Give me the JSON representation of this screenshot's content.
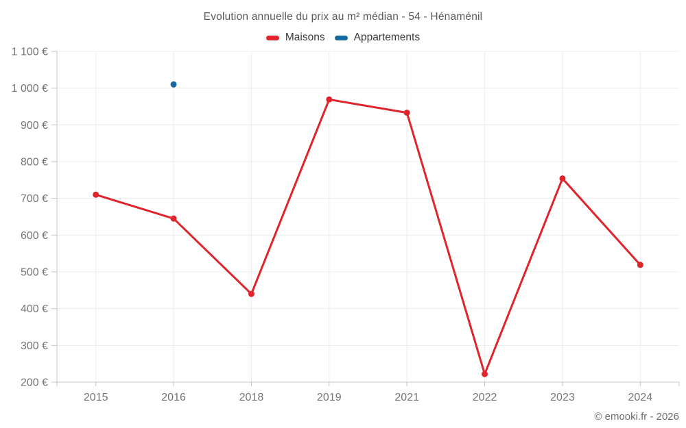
{
  "chart_data": {
    "type": "line",
    "title": "Evolution annuelle du prix au m² médian - 54 - Hénaménil",
    "categories": [
      "2015",
      "2016",
      "2018",
      "2019",
      "2021",
      "2022",
      "2023",
      "2024"
    ],
    "series": [
      {
        "name": "Maisons",
        "color": "#e0242c",
        "values": [
          710,
          645,
          440,
          969,
          933,
          222,
          754,
          519
        ]
      },
      {
        "name": "Appartements",
        "color": "#17699f",
        "values": [
          null,
          1010,
          null,
          null,
          null,
          null,
          null,
          null
        ]
      }
    ],
    "xlabel": "",
    "ylabel": "",
    "ylim": [
      200,
      1100
    ],
    "ytick_step": 100,
    "ytick_labels": [
      "200 €",
      "300 €",
      "400 €",
      "500 €",
      "600 €",
      "700 €",
      "800 €",
      "900 €",
      "1 000 €",
      "1 100 €"
    ],
    "grid": true,
    "legend_position": "top",
    "currency": "€"
  },
  "footer": {
    "copyright": "© emooki.fr - 2026"
  }
}
